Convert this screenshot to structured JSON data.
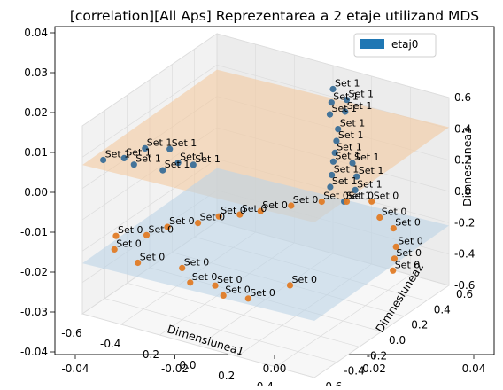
{
  "chart_data": {
    "type": "scatter",
    "projection": "3d",
    "title": "[correlation][All Aps] Reprezentarea a 2 etaje utilizand MDS",
    "xlabel": "Dimensiunea1",
    "ylabel": "Dimnesiunea2",
    "zlabel": "Dimnesiunea3",
    "overlay_axes": {
      "y_ticks": [
        "0.04",
        "0.03",
        "0.02",
        "0.01",
        "0.00",
        "-0.01",
        "-0.02",
        "-0.03",
        "-0.04"
      ],
      "x_ticks": [
        "-0.04",
        "-0.02",
        "0.00",
        "0.02",
        "0.04"
      ]
    },
    "x_ticks": [
      "-0.6",
      "-0.4",
      "-0.2",
      "0.0",
      "0.2",
      "0.4",
      "0.6"
    ],
    "y_ticks": [
      "-0.6",
      "-0.4",
      "-0.2",
      "0.0",
      "0.2",
      "0.4",
      "0.6"
    ],
    "z_ticks": [
      "0.6",
      "0.4",
      "0.2",
      "0.0",
      "-0.2",
      "-0.4",
      "-0.6"
    ],
    "legend": {
      "position": "top-right",
      "entries": [
        {
          "name": "etaj0",
          "color": "#1f77b4"
        }
      ]
    },
    "grid": true,
    "series": [
      {
        "name": "Set 1",
        "color": "#3a6f98",
        "plane_color": "#f3c9a0",
        "x": [
          -0.55,
          -0.5,
          -0.45,
          -0.42,
          -0.38,
          -0.3,
          -0.25,
          -0.2,
          0.0,
          0.05,
          0.1,
          0.1,
          0.15,
          0.2,
          0.25,
          0.3,
          0.35,
          0.4,
          0.42,
          0.45,
          0.5,
          0.55,
          0.58
        ],
        "y": [
          -0.5,
          -0.4,
          -0.3,
          -0.45,
          -0.2,
          -0.4,
          -0.35,
          -0.3,
          0.6,
          0.5,
          0.55,
          0.4,
          0.45,
          0.3,
          0.2,
          0.1,
          0.0,
          -0.1,
          0.05,
          -0.2,
          -0.05,
          -0.15,
          -0.3
        ],
        "z": [
          0.35,
          0.33,
          0.36,
          0.34,
          0.33,
          0.32,
          0.36,
          0.34,
          0.45,
          0.43,
          0.44,
          0.42,
          0.43,
          0.41,
          0.4,
          0.39,
          0.4,
          0.38,
          0.39,
          0.37,
          0.38,
          0.36,
          0.37
        ],
        "point_label": "Set 1"
      },
      {
        "name": "Set 0",
        "color": "#e07b26",
        "plane_color": "#bcd3e6",
        "x": [
          -0.6,
          -0.55,
          -0.5,
          -0.45,
          -0.4,
          -0.35,
          -0.3,
          -0.25,
          -0.2,
          -0.1,
          0.0,
          0.1,
          0.2,
          0.3,
          0.4,
          0.5,
          0.55,
          0.6,
          0.2,
          0.1,
          0.0,
          -0.1,
          -0.2,
          0.3
        ],
        "y": [
          -0.3,
          -0.4,
          -0.2,
          -0.1,
          -0.45,
          0.0,
          0.1,
          0.2,
          0.3,
          0.4,
          0.5,
          0.55,
          0.6,
          0.5,
          0.45,
          0.3,
          0.2,
          0.1,
          -0.5,
          -0.55,
          -0.45,
          -0.5,
          -0.4,
          -0.3
        ],
        "z": [
          -0.25,
          -0.27,
          -0.26,
          -0.24,
          -0.28,
          -0.23,
          -0.22,
          -0.24,
          -0.25,
          -0.23,
          -0.22,
          -0.21,
          -0.2,
          -0.22,
          -0.23,
          -0.24,
          -0.25,
          -0.26,
          -0.28,
          -0.27,
          -0.29,
          -0.28,
          -0.27,
          -0.26
        ],
        "point_label": "Set 0"
      }
    ]
  }
}
